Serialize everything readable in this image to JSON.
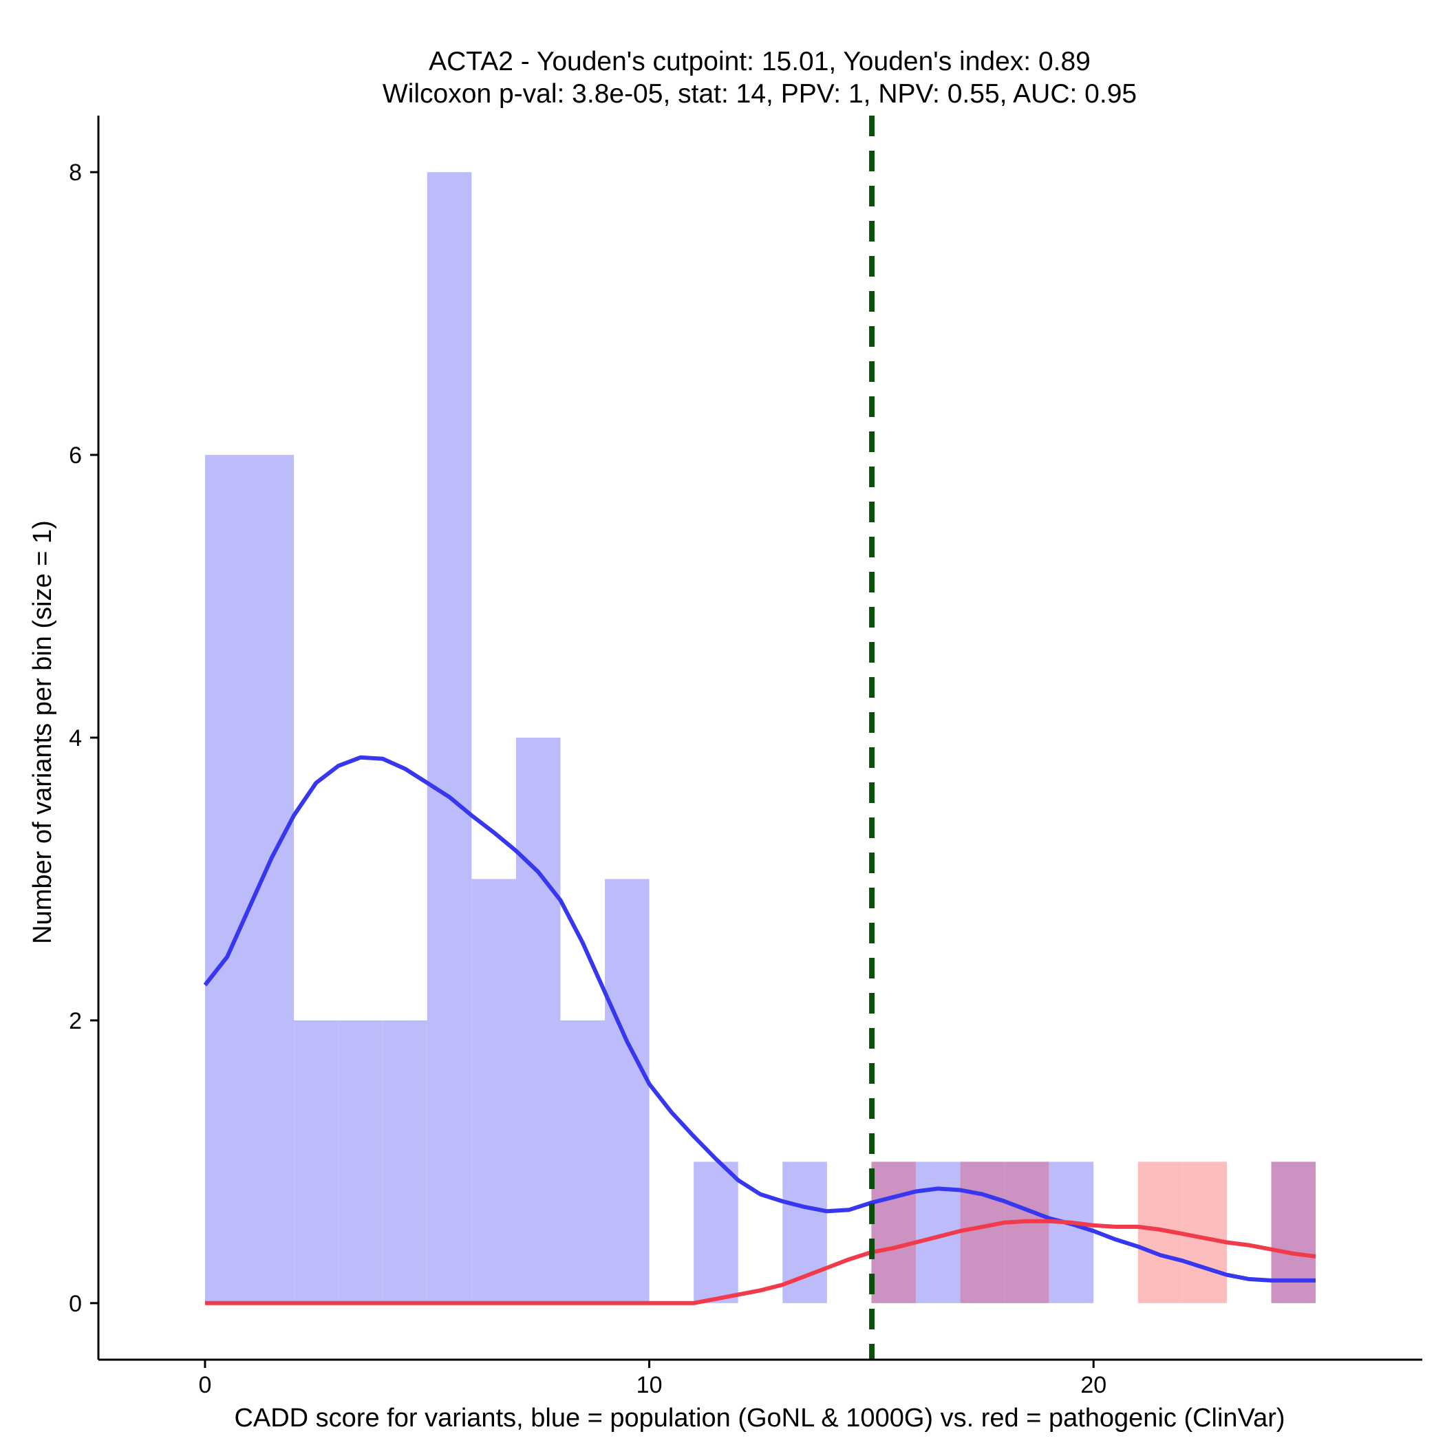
{
  "chart_data": {
    "type": "bar",
    "title": "ACTA2 - Youden's cutpoint: 15.01, Youden's index: 0.89",
    "subtitle": "Wilcoxon p-val: 3.8e-05, stat: 14, PPV: 1, NPV: 0.55, AUC: 0.95",
    "xlabel": "CADD score for variants, blue = population (GoNL & 1000G) vs. red = pathogenic (ClinVar)",
    "ylabel": "Number of variants per bin (size = 1)",
    "xlim": [
      -2.4,
      27.4
    ],
    "ylim": [
      -0.4,
      8.4
    ],
    "x_ticks": [
      0,
      10,
      20
    ],
    "y_ticks": [
      0,
      2,
      4,
      6,
      8
    ],
    "bin_width": 1,
    "cutpoint": 15.01,
    "histograms": [
      {
        "name": "population",
        "color": "#bcbcfa",
        "bins": [
          {
            "start": 0,
            "count": 6
          },
          {
            "start": 1,
            "count": 6
          },
          {
            "start": 2,
            "count": 2
          },
          {
            "start": 3,
            "count": 2
          },
          {
            "start": 4,
            "count": 2
          },
          {
            "start": 5,
            "count": 8
          },
          {
            "start": 6,
            "count": 3
          },
          {
            "start": 7,
            "count": 4
          },
          {
            "start": 8,
            "count": 2
          },
          {
            "start": 9,
            "count": 3
          },
          {
            "start": 11,
            "count": 1
          },
          {
            "start": 13,
            "count": 1
          },
          {
            "start": 15,
            "count": 1
          },
          {
            "start": 16,
            "count": 1
          },
          {
            "start": 17,
            "count": 1
          },
          {
            "start": 18,
            "count": 1
          },
          {
            "start": 19,
            "count": 1
          },
          {
            "start": 24,
            "count": 1
          }
        ]
      },
      {
        "name": "pathogenic",
        "color": "#fdbdbd",
        "bins": [
          {
            "start": 15,
            "count": 1
          },
          {
            "start": 17,
            "count": 1
          },
          {
            "start": 18,
            "count": 1
          },
          {
            "start": 21,
            "count": 1
          },
          {
            "start": 22,
            "count": 1
          },
          {
            "start": 24,
            "count": 1
          }
        ]
      }
    ],
    "overlap_color": "#cc92c2",
    "density_lines": [
      {
        "name": "population",
        "color": "#3737f0",
        "points": [
          [
            0,
            2.25
          ],
          [
            0.5,
            2.45
          ],
          [
            1,
            2.8
          ],
          [
            1.5,
            3.15
          ],
          [
            2,
            3.45
          ],
          [
            2.5,
            3.68
          ],
          [
            3,
            3.8
          ],
          [
            3.5,
            3.86
          ],
          [
            4,
            3.85
          ],
          [
            4.5,
            3.78
          ],
          [
            5,
            3.68
          ],
          [
            5.5,
            3.58
          ],
          [
            6,
            3.45
          ],
          [
            6.5,
            3.33
          ],
          [
            7,
            3.2
          ],
          [
            7.5,
            3.05
          ],
          [
            8,
            2.85
          ],
          [
            8.5,
            2.55
          ],
          [
            9,
            2.2
          ],
          [
            9.5,
            1.85
          ],
          [
            10,
            1.55
          ],
          [
            10.5,
            1.35
          ],
          [
            11,
            1.18
          ],
          [
            11.5,
            1.02
          ],
          [
            12,
            0.87
          ],
          [
            12.5,
            0.77
          ],
          [
            13,
            0.72
          ],
          [
            13.5,
            0.68
          ],
          [
            14,
            0.65
          ],
          [
            14.5,
            0.66
          ],
          [
            15,
            0.71
          ],
          [
            15.5,
            0.75
          ],
          [
            16,
            0.79
          ],
          [
            16.5,
            0.81
          ],
          [
            17,
            0.8
          ],
          [
            17.5,
            0.77
          ],
          [
            18,
            0.72
          ],
          [
            18.5,
            0.66
          ],
          [
            19,
            0.6
          ],
          [
            19.5,
            0.56
          ],
          [
            20,
            0.51
          ],
          [
            20.5,
            0.45
          ],
          [
            21,
            0.4
          ],
          [
            21.5,
            0.34
          ],
          [
            22,
            0.3
          ],
          [
            22.5,
            0.25
          ],
          [
            23,
            0.2
          ],
          [
            23.5,
            0.17
          ],
          [
            24,
            0.16
          ],
          [
            24.5,
            0.16
          ],
          [
            25,
            0.16
          ]
        ]
      },
      {
        "name": "pathogenic",
        "color": "#f23b4a",
        "points": [
          [
            0,
            0
          ],
          [
            5,
            0
          ],
          [
            10,
            0
          ],
          [
            11,
            0
          ],
          [
            11.5,
            0.03
          ],
          [
            12,
            0.06
          ],
          [
            12.5,
            0.09
          ],
          [
            13,
            0.13
          ],
          [
            13.5,
            0.19
          ],
          [
            14,
            0.25
          ],
          [
            14.5,
            0.31
          ],
          [
            15,
            0.36
          ],
          [
            15.5,
            0.39
          ],
          [
            16,
            0.43
          ],
          [
            16.5,
            0.47
          ],
          [
            17,
            0.51
          ],
          [
            17.5,
            0.54
          ],
          [
            18,
            0.57
          ],
          [
            18.5,
            0.58
          ],
          [
            19,
            0.58
          ],
          [
            19.5,
            0.57
          ],
          [
            20,
            0.55
          ],
          [
            20.5,
            0.54
          ],
          [
            21,
            0.54
          ],
          [
            21.5,
            0.52
          ],
          [
            22,
            0.49
          ],
          [
            22.5,
            0.46
          ],
          [
            23,
            0.43
          ],
          [
            23.5,
            0.41
          ],
          [
            24,
            0.38
          ],
          [
            24.5,
            0.35
          ],
          [
            25,
            0.33
          ]
        ]
      }
    ],
    "cutpoint_line": {
      "color": "#0b4f0b",
      "style": "dashed"
    }
  }
}
